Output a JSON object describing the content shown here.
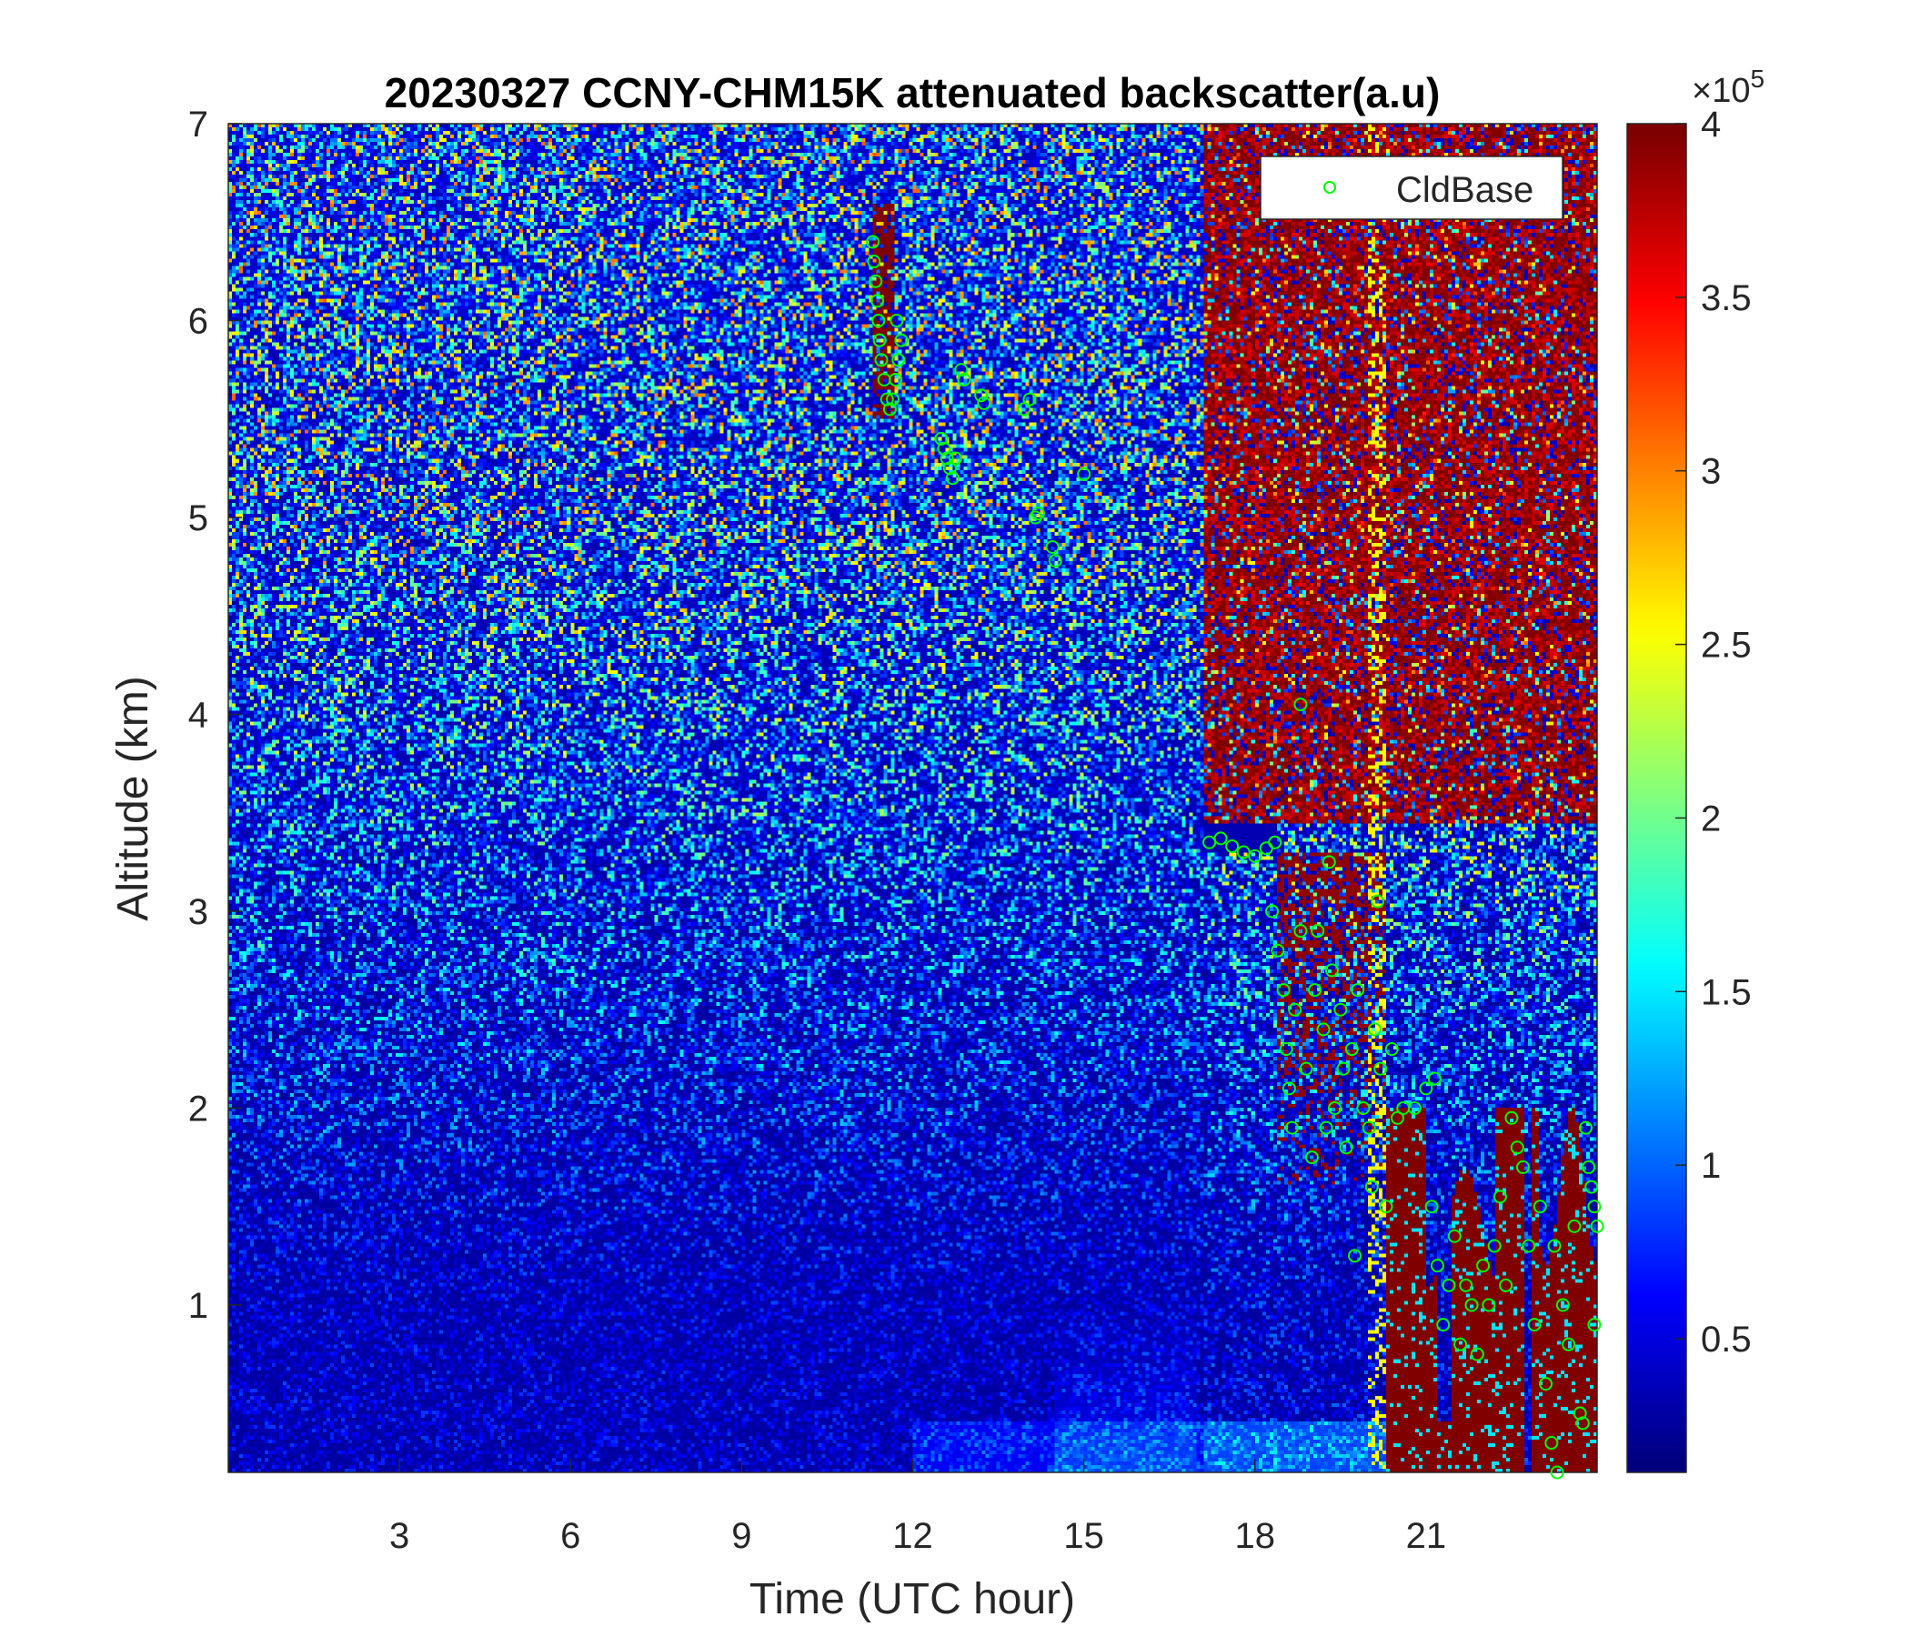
{
  "chart_data": {
    "type": "heatmap",
    "title": "20230327 CCNY-CHM15K attenuated backscatter(a.u)",
    "xlabel": "Time (UTC hour)",
    "ylabel": "Altitude (km)",
    "xlim": [
      0,
      24
    ],
    "ylim": [
      0.15,
      7
    ],
    "xticks": [
      "3",
      "6",
      "9",
      "12",
      "15",
      "18",
      "21"
    ],
    "xtick_values": [
      3,
      6,
      9,
      12,
      15,
      18,
      21
    ],
    "yticks": [
      "1",
      "2",
      "3",
      "4",
      "5",
      "6",
      "7"
    ],
    "ytick_values": [
      1,
      2,
      3,
      4,
      5,
      6,
      7
    ],
    "colormap": "jet",
    "colorbar": {
      "multiplier": "×10",
      "exponent": "5",
      "clim": [
        0.115,
        4
      ],
      "ticks": [
        "0.5",
        "1",
        "1.5",
        "2",
        "2.5",
        "3",
        "3.5",
        "4"
      ],
      "tick_values": [
        0.5,
        1,
        1.5,
        2,
        2.5,
        3,
        3.5,
        4
      ]
    },
    "legend": {
      "position": "top-right",
      "entries": [
        "CldBase"
      ]
    },
    "series": [
      {
        "name": "CldBase",
        "marker": "circle",
        "color": "#00ff00",
        "points": [
          [
            11.3,
            6.4
          ],
          [
            11.32,
            6.3
          ],
          [
            11.35,
            6.2
          ],
          [
            11.38,
            6.1
          ],
          [
            11.4,
            6.0
          ],
          [
            11.42,
            5.9
          ],
          [
            11.45,
            5.8
          ],
          [
            11.5,
            5.7
          ],
          [
            11.55,
            5.6
          ],
          [
            11.6,
            5.55
          ],
          [
            11.65,
            5.6
          ],
          [
            11.7,
            5.7
          ],
          [
            11.75,
            5.8
          ],
          [
            11.8,
            5.9
          ],
          [
            11.72,
            6.0
          ],
          [
            12.5,
            5.4
          ],
          [
            12.55,
            5.35
          ],
          [
            12.6,
            5.3
          ],
          [
            12.65,
            5.25
          ],
          [
            12.7,
            5.2
          ],
          [
            12.75,
            5.3
          ],
          [
            12.85,
            5.75
          ],
          [
            12.9,
            5.7
          ],
          [
            13.2,
            5.62
          ],
          [
            13.25,
            5.58
          ],
          [
            13.95,
            5.55
          ],
          [
            14.05,
            5.6
          ],
          [
            14.15,
            5.0
          ],
          [
            14.2,
            5.02
          ],
          [
            14.45,
            4.85
          ],
          [
            14.5,
            4.78
          ],
          [
            15.0,
            5.22
          ],
          [
            18.8,
            4.05
          ],
          [
            17.2,
            3.35
          ],
          [
            17.4,
            3.37
          ],
          [
            17.6,
            3.33
          ],
          [
            17.8,
            3.3
          ],
          [
            18.0,
            3.28
          ],
          [
            18.2,
            3.32
          ],
          [
            18.35,
            3.35
          ],
          [
            18.3,
            3.0
          ],
          [
            18.4,
            2.8
          ],
          [
            18.5,
            2.6
          ],
          [
            18.55,
            2.3
          ],
          [
            18.6,
            2.1
          ],
          [
            18.65,
            1.9
          ],
          [
            18.7,
            2.5
          ],
          [
            18.8,
            2.9
          ],
          [
            18.9,
            2.2
          ],
          [
            19.0,
            1.75
          ],
          [
            19.05,
            2.6
          ],
          [
            19.1,
            2.9
          ],
          [
            19.2,
            2.4
          ],
          [
            19.25,
            1.9
          ],
          [
            19.3,
            3.25
          ],
          [
            19.35,
            2.7
          ],
          [
            19.4,
            2.0
          ],
          [
            19.5,
            2.5
          ],
          [
            19.55,
            2.2
          ],
          [
            19.6,
            1.8
          ],
          [
            19.7,
            2.3
          ],
          [
            19.75,
            1.25
          ],
          [
            19.8,
            2.6
          ],
          [
            19.9,
            2.0
          ],
          [
            20.0,
            1.9
          ],
          [
            20.05,
            1.6
          ],
          [
            20.1,
            2.4
          ],
          [
            20.15,
            3.05
          ],
          [
            20.2,
            2.2
          ],
          [
            20.3,
            1.5
          ],
          [
            20.4,
            2.3
          ],
          [
            20.5,
            1.95
          ],
          [
            20.6,
            2.0
          ],
          [
            20.8,
            2.0
          ],
          [
            21.0,
            2.1
          ],
          [
            21.1,
            1.5
          ],
          [
            21.15,
            2.15
          ],
          [
            21.2,
            1.2
          ],
          [
            21.3,
            0.9
          ],
          [
            21.4,
            1.1
          ],
          [
            21.5,
            1.35
          ],
          [
            21.6,
            0.8
          ],
          [
            21.7,
            1.1
          ],
          [
            21.8,
            1.0
          ],
          [
            21.9,
            0.75
          ],
          [
            22.0,
            1.2
          ],
          [
            22.1,
            1.0
          ],
          [
            22.2,
            1.3
          ],
          [
            22.3,
            1.55
          ],
          [
            22.4,
            1.1
          ],
          [
            22.5,
            1.95
          ],
          [
            22.6,
            1.8
          ],
          [
            22.7,
            1.7
          ],
          [
            22.8,
            1.3
          ],
          [
            22.9,
            0.9
          ],
          [
            23.0,
            1.5
          ],
          [
            23.1,
            0.6
          ],
          [
            23.2,
            0.3
          ],
          [
            23.25,
            1.3
          ],
          [
            23.3,
            0.15
          ],
          [
            23.4,
            1.0
          ],
          [
            23.5,
            0.8
          ],
          [
            23.6,
            1.4
          ],
          [
            23.7,
            0.45
          ],
          [
            23.75,
            0.4
          ],
          [
            23.8,
            1.9
          ],
          [
            23.85,
            1.7
          ],
          [
            23.9,
            1.6
          ],
          [
            23.95,
            1.5
          ],
          [
            24.0,
            1.4
          ],
          [
            23.95,
            0.9
          ]
        ]
      }
    ]
  }
}
